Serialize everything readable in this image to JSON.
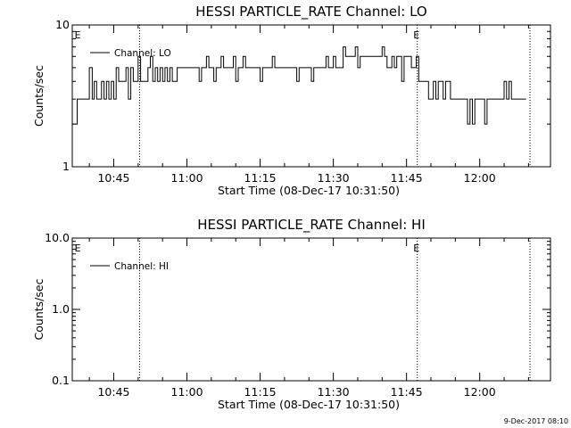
{
  "charts": [
    {
      "type": "line",
      "title": "HESSI PARTICLE_RATE Channel: LO",
      "ylabel": "Counts/sec",
      "xlabel": "Start Time (08-Dec-17 10:31:50)",
      "yscale": "log",
      "ylim": [
        1,
        10
      ],
      "ytick_values": [
        1,
        10
      ],
      "ytick_labels": [
        "1",
        "10"
      ],
      "xlim_min": [
        36.5,
        134.5
      ],
      "xtick_values": [
        45,
        60,
        75,
        90,
        105,
        120
      ],
      "xtick_labels": [
        "10:45",
        "11:00",
        "11:15",
        "11:30",
        "11:45",
        "12:00"
      ],
      "legend_label": "Channel: LO",
      "legend_position": "upper-left",
      "e_markers": [
        {
          "label": "E",
          "x_min": 36.8
        },
        {
          "label": "E",
          "x_min": 106.2
        }
      ],
      "dotted_lines_min": [
        50.3,
        107.2,
        130.3
      ],
      "series": [
        {
          "name": "Channel: LO",
          "x_min": [
            36.6,
            37.5,
            38.5,
            39.0,
            39.5,
            40.0,
            40.6,
            41.0,
            41.5,
            42.0,
            42.5,
            43.0,
            43.5,
            44.0,
            44.5,
            45.0,
            45.5,
            46.0,
            46.5,
            47.0,
            47.5,
            48.0,
            48.5,
            49.0,
            49.5,
            50.0,
            50.5,
            51.0,
            51.5,
            52.0,
            52.5,
            53.0,
            53.5,
            54.0,
            54.5,
            55.0,
            55.5,
            56.0,
            56.5,
            57.0,
            57.5,
            58.0,
            58.5,
            59.0,
            59.5,
            60.0,
            60.5,
            61.0,
            61.5,
            62.0,
            62.5,
            63.0,
            63.5,
            64.0,
            64.5,
            65.0,
            65.5,
            66.0,
            66.5,
            67.0,
            67.5,
            68.0,
            68.5,
            69.0,
            69.5,
            70.0,
            70.5,
            71.0,
            71.5,
            72.0,
            72.5,
            73.0,
            73.5,
            74.0,
            74.5,
            75.0,
            75.5,
            76.0,
            76.5,
            77.0,
            77.5,
            78.0,
            78.5,
            79.0,
            79.5,
            80.0,
            80.5,
            81.0,
            81.5,
            82.0,
            82.5,
            83.0,
            83.5,
            84.0,
            84.5,
            85.0,
            85.5,
            86.0,
            86.5,
            87.0,
            87.5,
            88.0,
            88.5,
            89.0,
            89.5,
            90.0,
            90.5,
            91.0,
            91.5,
            92.0,
            92.5,
            93.0,
            93.5,
            94.0,
            94.5,
            95.0,
            95.5,
            96.0,
            96.5,
            97.0,
            97.5,
            98.0,
            98.5,
            99.0,
            99.5,
            100.0,
            100.5,
            101.0,
            101.5,
            102.0,
            102.5,
            103.0,
            103.5,
            104.0,
            104.5,
            105.0,
            105.5,
            106.0,
            106.5,
            107.0,
            107.5,
            108.0,
            108.5,
            109.0,
            109.5,
            110.0,
            110.5,
            111.0,
            111.5,
            112.0,
            112.5,
            113.0,
            113.5,
            114.0,
            114.5,
            115.0,
            115.5,
            116.0,
            116.5,
            117.0,
            117.5,
            118.0,
            118.5,
            119.0,
            119.5,
            120.0,
            120.5,
            121.0,
            121.5,
            122.0,
            122.5,
            123.0,
            123.5,
            124.0,
            124.5,
            125.0,
            125.5,
            126.0,
            126.5,
            127.0,
            127.5,
            128.0,
            128.5,
            129.0
          ],
          "y_counts_per_sec": [
            2,
            3,
            3,
            3,
            3,
            5,
            3,
            4,
            3,
            3,
            4,
            3,
            4,
            3,
            4,
            3,
            5,
            4,
            4,
            4,
            5,
            3,
            5,
            4,
            4,
            6,
            4,
            4,
            4,
            5,
            6,
            4,
            5,
            4,
            5,
            4,
            5,
            4,
            5,
            4,
            4,
            5,
            5,
            5,
            5,
            5,
            5,
            5,
            5,
            5,
            4,
            5,
            5,
            6,
            5,
            5,
            4,
            5,
            5,
            6,
            5,
            5,
            5,
            5,
            6,
            4,
            5,
            5,
            6,
            5,
            5,
            5,
            5,
            5,
            5,
            4,
            5,
            5,
            5,
            5,
            6,
            5,
            5,
            5,
            5,
            5,
            5,
            5,
            5,
            5,
            4,
            5,
            5,
            5,
            5,
            5,
            4,
            5,
            5,
            5,
            5,
            5,
            6,
            5,
            5,
            6,
            5,
            5,
            5,
            7,
            6,
            6,
            6,
            6,
            7,
            5,
            6,
            6,
            6,
            6,
            6,
            6,
            6,
            6,
            6,
            7,
            6,
            5,
            5,
            6,
            5,
            6,
            6,
            4,
            6,
            6,
            6,
            5,
            5,
            6,
            4,
            4,
            4,
            4,
            3,
            3,
            4,
            3,
            4,
            4,
            3,
            4,
            4,
            3,
            3,
            3,
            3,
            3,
            3,
            3,
            2,
            3,
            2,
            3,
            3,
            3,
            3,
            2,
            3,
            3,
            3,
            3,
            3,
            3,
            3,
            4,
            3,
            4,
            3,
            3,
            3,
            3,
            3,
            3
          ]
        }
      ]
    },
    {
      "type": "line",
      "title": "HESSI PARTICLE_RATE Channel: HI",
      "ylabel": "Counts/sec",
      "xlabel": "Start Time (08-Dec-17 10:31:50)",
      "yscale": "log",
      "ylim": [
        0.1,
        10
      ],
      "ytick_values": [
        0.1,
        1,
        10
      ],
      "ytick_labels": [
        "0.1",
        "1.0",
        "10.0"
      ],
      "xlim_min": [
        36.5,
        134.5
      ],
      "xtick_values": [
        45,
        60,
        75,
        90,
        105,
        120
      ],
      "xtick_labels": [
        "10:45",
        "11:00",
        "11:15",
        "11:30",
        "11:45",
        "12:00"
      ],
      "legend_label": "Channel: HI",
      "legend_position": "upper-left",
      "e_markers": [
        {
          "label": "E",
          "x_min": 36.8
        },
        {
          "label": "E",
          "x_min": 106.2
        }
      ],
      "dotted_lines_min": [
        50.3,
        107.2,
        130.3
      ],
      "series": []
    }
  ],
  "timestamp": "9-Dec-2017 08:10"
}
